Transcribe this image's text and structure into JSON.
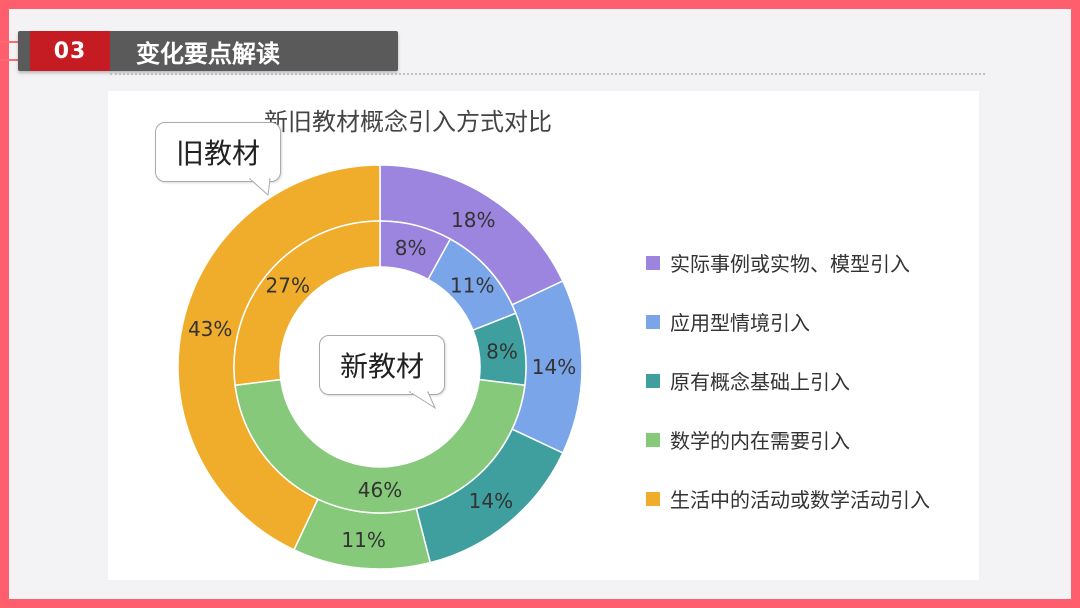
{
  "header": {
    "badge": "03",
    "title": "变化要点解读"
  },
  "callouts": {
    "outer": "旧教材",
    "inner": "新教材"
  },
  "chart_data": {
    "type": "donut",
    "title": "新旧教材概念引入方式对比",
    "categories": [
      "实际事例或实物、模型引入",
      "应用型情境引入",
      "原有概念基础上引入",
      "数学的内在需要引入",
      "生活中的活动或数学活动引入"
    ],
    "colors": [
      "#9b85de",
      "#7aa5e8",
      "#3f9e9e",
      "#86c97a",
      "#f0ad2b"
    ],
    "series": [
      {
        "name": "旧教材",
        "values": [
          18,
          14,
          14,
          11,
          43
        ],
        "labels": [
          "18%",
          "14%",
          "14%",
          "11%",
          "43%"
        ]
      },
      {
        "name": "新教材",
        "values": [
          8,
          11,
          8,
          46,
          27
        ],
        "labels": [
          "8%",
          "11%",
          "8%",
          "46%",
          "27%"
        ]
      }
    ]
  }
}
